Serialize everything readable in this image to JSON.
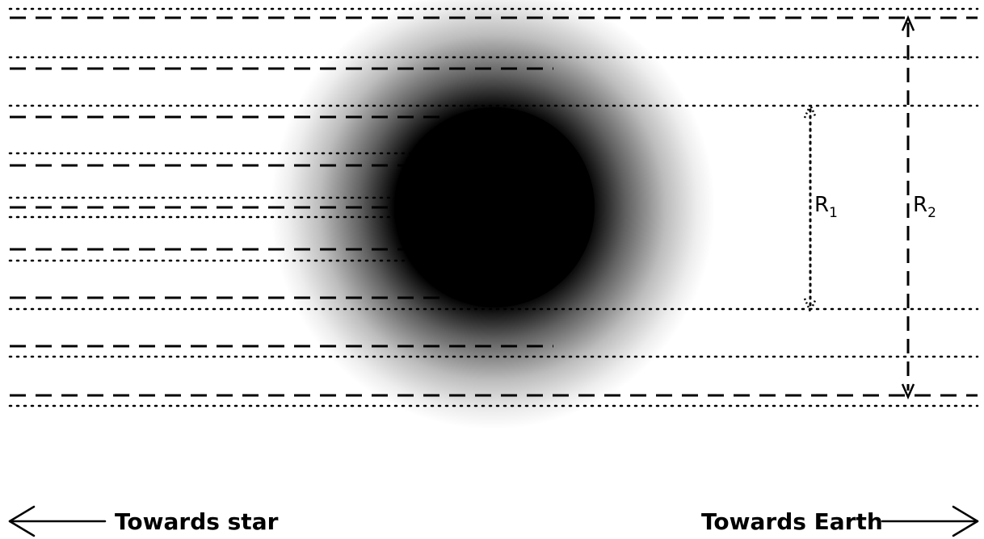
{
  "labels": {
    "r1": "R",
    "r1_sub": "1",
    "r2": "R",
    "r2_sub": "2",
    "towards_star": "Towards star",
    "towards_earth": "Towards Earth"
  },
  "colors": {
    "ink": "#000000",
    "background": "#ffffff",
    "planet": "#000000",
    "atmosphere_inner": "#000000",
    "atmosphere_outer": "#ffffff"
  },
  "icons": {
    "left": "arrow-left-icon",
    "right": "arrow-right-icon"
  }
}
